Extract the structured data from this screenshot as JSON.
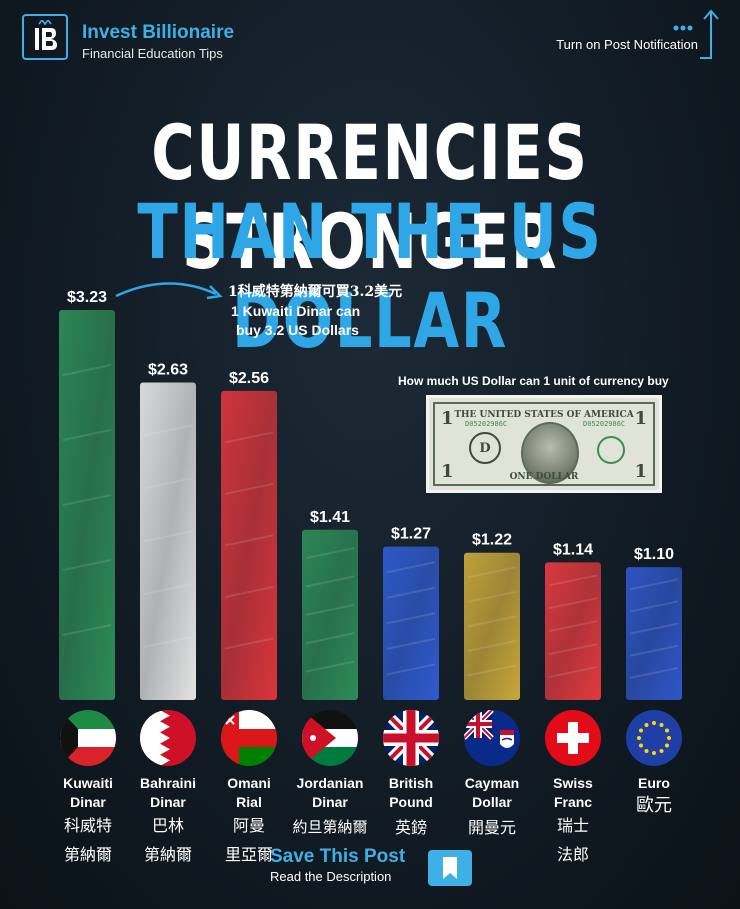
{
  "brand": {
    "name": "Invest Billionaire",
    "subtitle": "Financial Education Tips",
    "logo_letter": "IB"
  },
  "notification": "Turn on Post Notification",
  "title": {
    "line1": "CURRENCIES STRONGER",
    "line2": "THAN THE US DOLLAR"
  },
  "annotation": {
    "zh": "1科威特第納爾可買3.2美元",
    "en_line1": "1 Kuwaiti Dinar can",
    "en_line2": "buy 3.2 US Dollars"
  },
  "usd_note": {
    "caption": "How much US Dollar can 1 unit of currency buy",
    "top_text": "THE UNITED STATES OF AMERICA",
    "bottom_text": "ONE DOLLAR",
    "serial": "D05202986C",
    "denom": "1",
    "seal_letter": "D"
  },
  "colors": {
    "accent": "#3fb0e6",
    "title_white": "#ffffff",
    "title_blue": "#2fa7e6",
    "background": "#121c25"
  },
  "chart_data": {
    "type": "bar",
    "categories": [
      "Kuwaiti Dinar",
      "Bahraini Dinar",
      "Omani Rial",
      "Jordanian Dinar",
      "British Pound",
      "Cayman Dollar",
      "Swiss Franc",
      "Euro"
    ],
    "values": [
      3.23,
      2.63,
      2.56,
      1.41,
      1.27,
      1.22,
      1.14,
      1.1
    ],
    "value_labels": [
      "$3.23",
      "$2.63",
      "$2.56",
      "$1.41",
      "$1.27",
      "$1.22",
      "$1.14",
      "$1.10"
    ],
    "bar_colors": [
      "#2e8b57",
      "#e3e3e3",
      "#d9353b",
      "#2e8b57",
      "#2f5bd0",
      "#c9a73a",
      "#e23a3f",
      "#2f57c9"
    ],
    "ylim": [
      0,
      3.23
    ]
  },
  "currencies": [
    {
      "name_line1": "Kuwaiti",
      "name_line2": "Dinar",
      "zh_line1": "科威特",
      "zh_line2": "第納爾",
      "flag": "kuwait-flag"
    },
    {
      "name_line1": "Bahraini",
      "name_line2": "Dinar",
      "zh_line1": "巴林",
      "zh_line2": "第納爾",
      "flag": "bahrain-flag"
    },
    {
      "name_line1": "Omani",
      "name_line2": "Rial",
      "zh_line1": "阿曼",
      "zh_line2": "里亞爾",
      "flag": "oman-flag"
    },
    {
      "name_line1": "Jordanian",
      "name_line2": "Dinar",
      "zh_line1": "約旦第納爾",
      "zh_line2": "",
      "flag": "jordan-flag"
    },
    {
      "name_line1": "British",
      "name_line2": "Pound",
      "zh_line1": "英鎊",
      "zh_line2": "",
      "flag": "uk-flag"
    },
    {
      "name_line1": "Cayman",
      "name_line2": "Dollar",
      "zh_line1": "開曼元",
      "zh_line2": "",
      "flag": "cayman-flag"
    },
    {
      "name_line1": "Swiss",
      "name_line2": "Franc",
      "zh_line1": "瑞士",
      "zh_line2": "法郎",
      "flag": "swiss-flag"
    },
    {
      "name_line1": "Euro",
      "name_line2": "",
      "zh_line1": "歐元",
      "zh_line2": "",
      "flag": "eu-flag"
    }
  ],
  "footer": {
    "save": "Save This Post",
    "read": "Read the Description"
  }
}
